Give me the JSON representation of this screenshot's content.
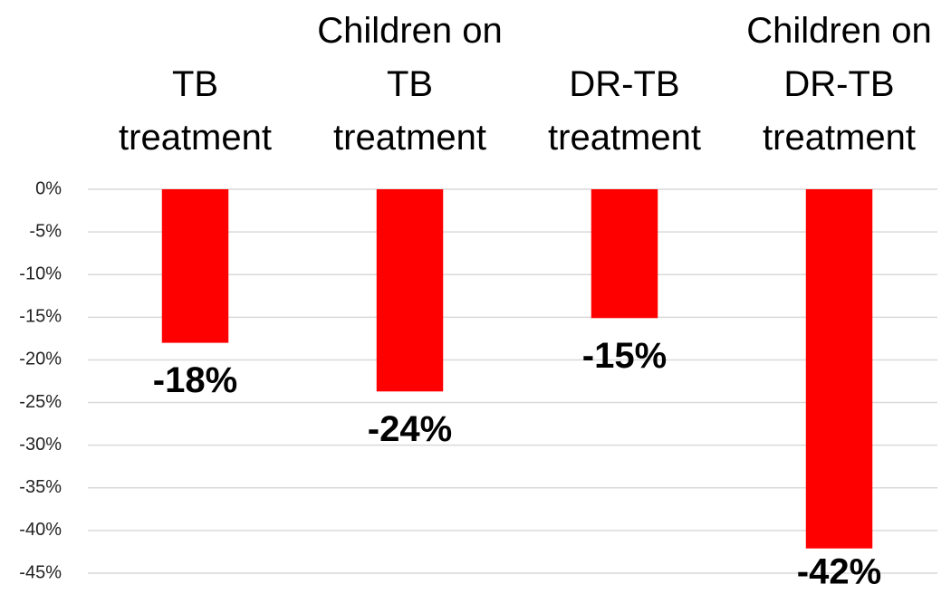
{
  "chart_data": {
    "type": "bar",
    "categories": [
      "TB\ntreatment",
      "Children on\nTB\ntreatment",
      "DR-TB\ntreatment",
      "Children on\nDR-TB\ntreatment"
    ],
    "values": [
      -18,
      -23.7,
      -15.1,
      -42.1
    ],
    "value_labels": [
      "-18%",
      "-24%",
      "-15%",
      "-42%"
    ],
    "color": "#ff0000",
    "ylim": [
      -45,
      0
    ],
    "yticks": [
      {
        "value": 0,
        "label": "0%"
      },
      {
        "value": -5,
        "label": "-5%"
      },
      {
        "value": -10,
        "label": "-10%"
      },
      {
        "value": -15,
        "label": "-15%"
      },
      {
        "value": -20,
        "label": "-20%"
      },
      {
        "value": -25,
        "label": "-25%"
      },
      {
        "value": -30,
        "label": "-30%"
      },
      {
        "value": -35,
        "label": "-35%"
      },
      {
        "value": -40,
        "label": "-40%"
      },
      {
        "value": -45,
        "label": "-45%"
      }
    ],
    "grid": true
  }
}
